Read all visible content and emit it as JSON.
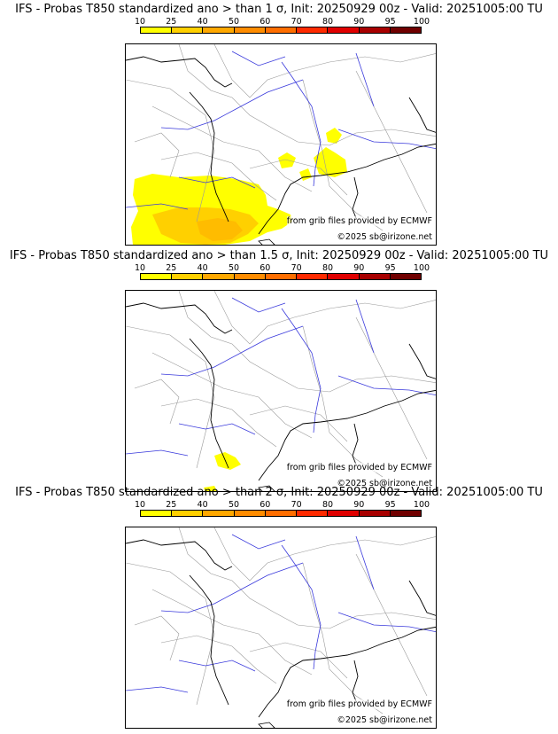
{
  "panels": [
    {
      "title": "IFS - Probas T850  standardized ano > than 1 σ, Init: 20250929 00z - Valid: 20251005:00 TU",
      "threshold": "1 σ",
      "credit_source": "from grib files provided by ECMWF",
      "credit_copyright": "©2025 sb@irizone.net",
      "probability_areas": [
        "southwest France / Pyrenees",
        "Gulf of Lion coast",
        "Alpine border"
      ]
    },
    {
      "title": "IFS - Probas T850  standardized ano > than 1.5 σ, Init: 20250929 00z - Valid: 20251005:00 TU",
      "threshold": "1.5 σ",
      "credit_source": "from grib files provided by ECMWF",
      "credit_copyright": "©2025 sb@irizone.net",
      "probability_areas": [
        "eastern Pyrenees coast"
      ]
    },
    {
      "title": "IFS - Probas T850  standardized ano > than 2 σ, Init: 20250929 00z - Valid: 20251005:00 TU",
      "threshold": "2 σ",
      "credit_source": "from grib files provided by ECMWF",
      "credit_copyright": "©2025 sb@irizone.net",
      "probability_areas": []
    }
  ],
  "legend": {
    "labels": [
      "10",
      "25",
      "40",
      "50",
      "60",
      "70",
      "80",
      "90",
      "95",
      "100"
    ],
    "colors": [
      "#ffff00",
      "#ffd000",
      "#ffa800",
      "#ff8c00",
      "#ff6e00",
      "#ff2a00",
      "#e00000",
      "#a80000",
      "#700000"
    ]
  }
}
